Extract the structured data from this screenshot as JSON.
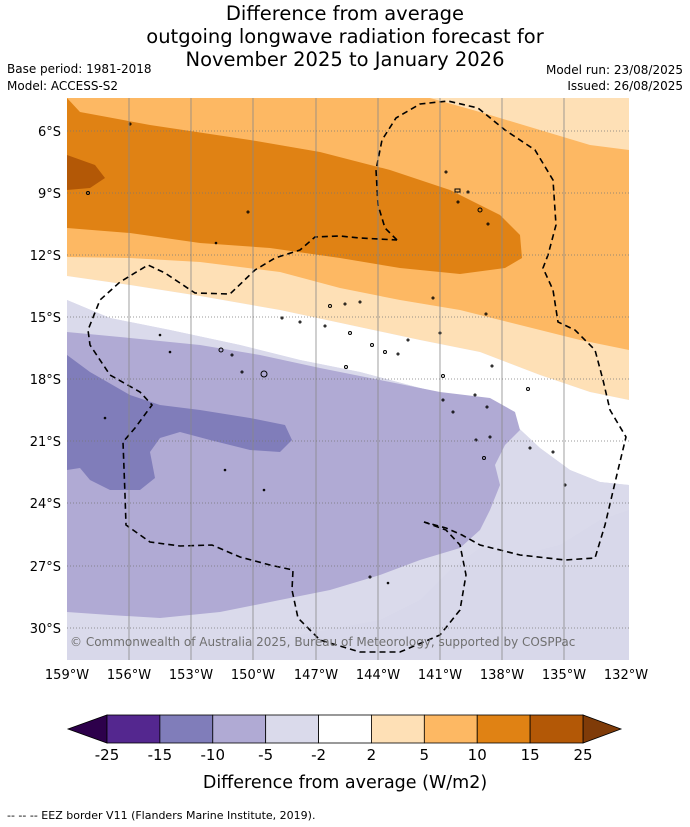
{
  "title": {
    "line1": "Difference from average",
    "line2": "outgoing longwave radiation forecast for",
    "line3": "November 2025 to January 2026"
  },
  "meta": {
    "base_period": "Base period: 1981-2018",
    "model": "Model: ACCESS-S2",
    "model_run": "Model run: 23/08/2025",
    "issued": "Issued: 26/08/2025"
  },
  "map": {
    "lat_ticks": [
      "6°S",
      "9°S",
      "12°S",
      "15°S",
      "18°S",
      "21°S",
      "24°S",
      "27°S",
      "30°S"
    ],
    "lon_ticks": [
      "159°W",
      "156°W",
      "153°W",
      "150°W",
      "147°W",
      "144°W",
      "141°W",
      "138°W",
      "135°W",
      "132°W"
    ],
    "credit": "© Commonwealth of Australia 2025, Bureau of Meteorology, supported by COSPPac"
  },
  "colorbar": {
    "levels": [
      "-25",
      "-15",
      "-10",
      "-5",
      "-2",
      "2",
      "5",
      "10",
      "15",
      "25"
    ],
    "colors": [
      "#54278f",
      "#807dba",
      "#b0aad4",
      "#dadaeb",
      "#ffffff",
      "#fee0b6",
      "#fdb863",
      "#e08214",
      "#b35806"
    ],
    "under_color": "#2d004b",
    "over_color": "#7f3b08",
    "label": "Difference from average (W/m2)"
  },
  "footer": "-- -- -- EEZ border V11 (Flanders Marine Institute, 2019)."
}
